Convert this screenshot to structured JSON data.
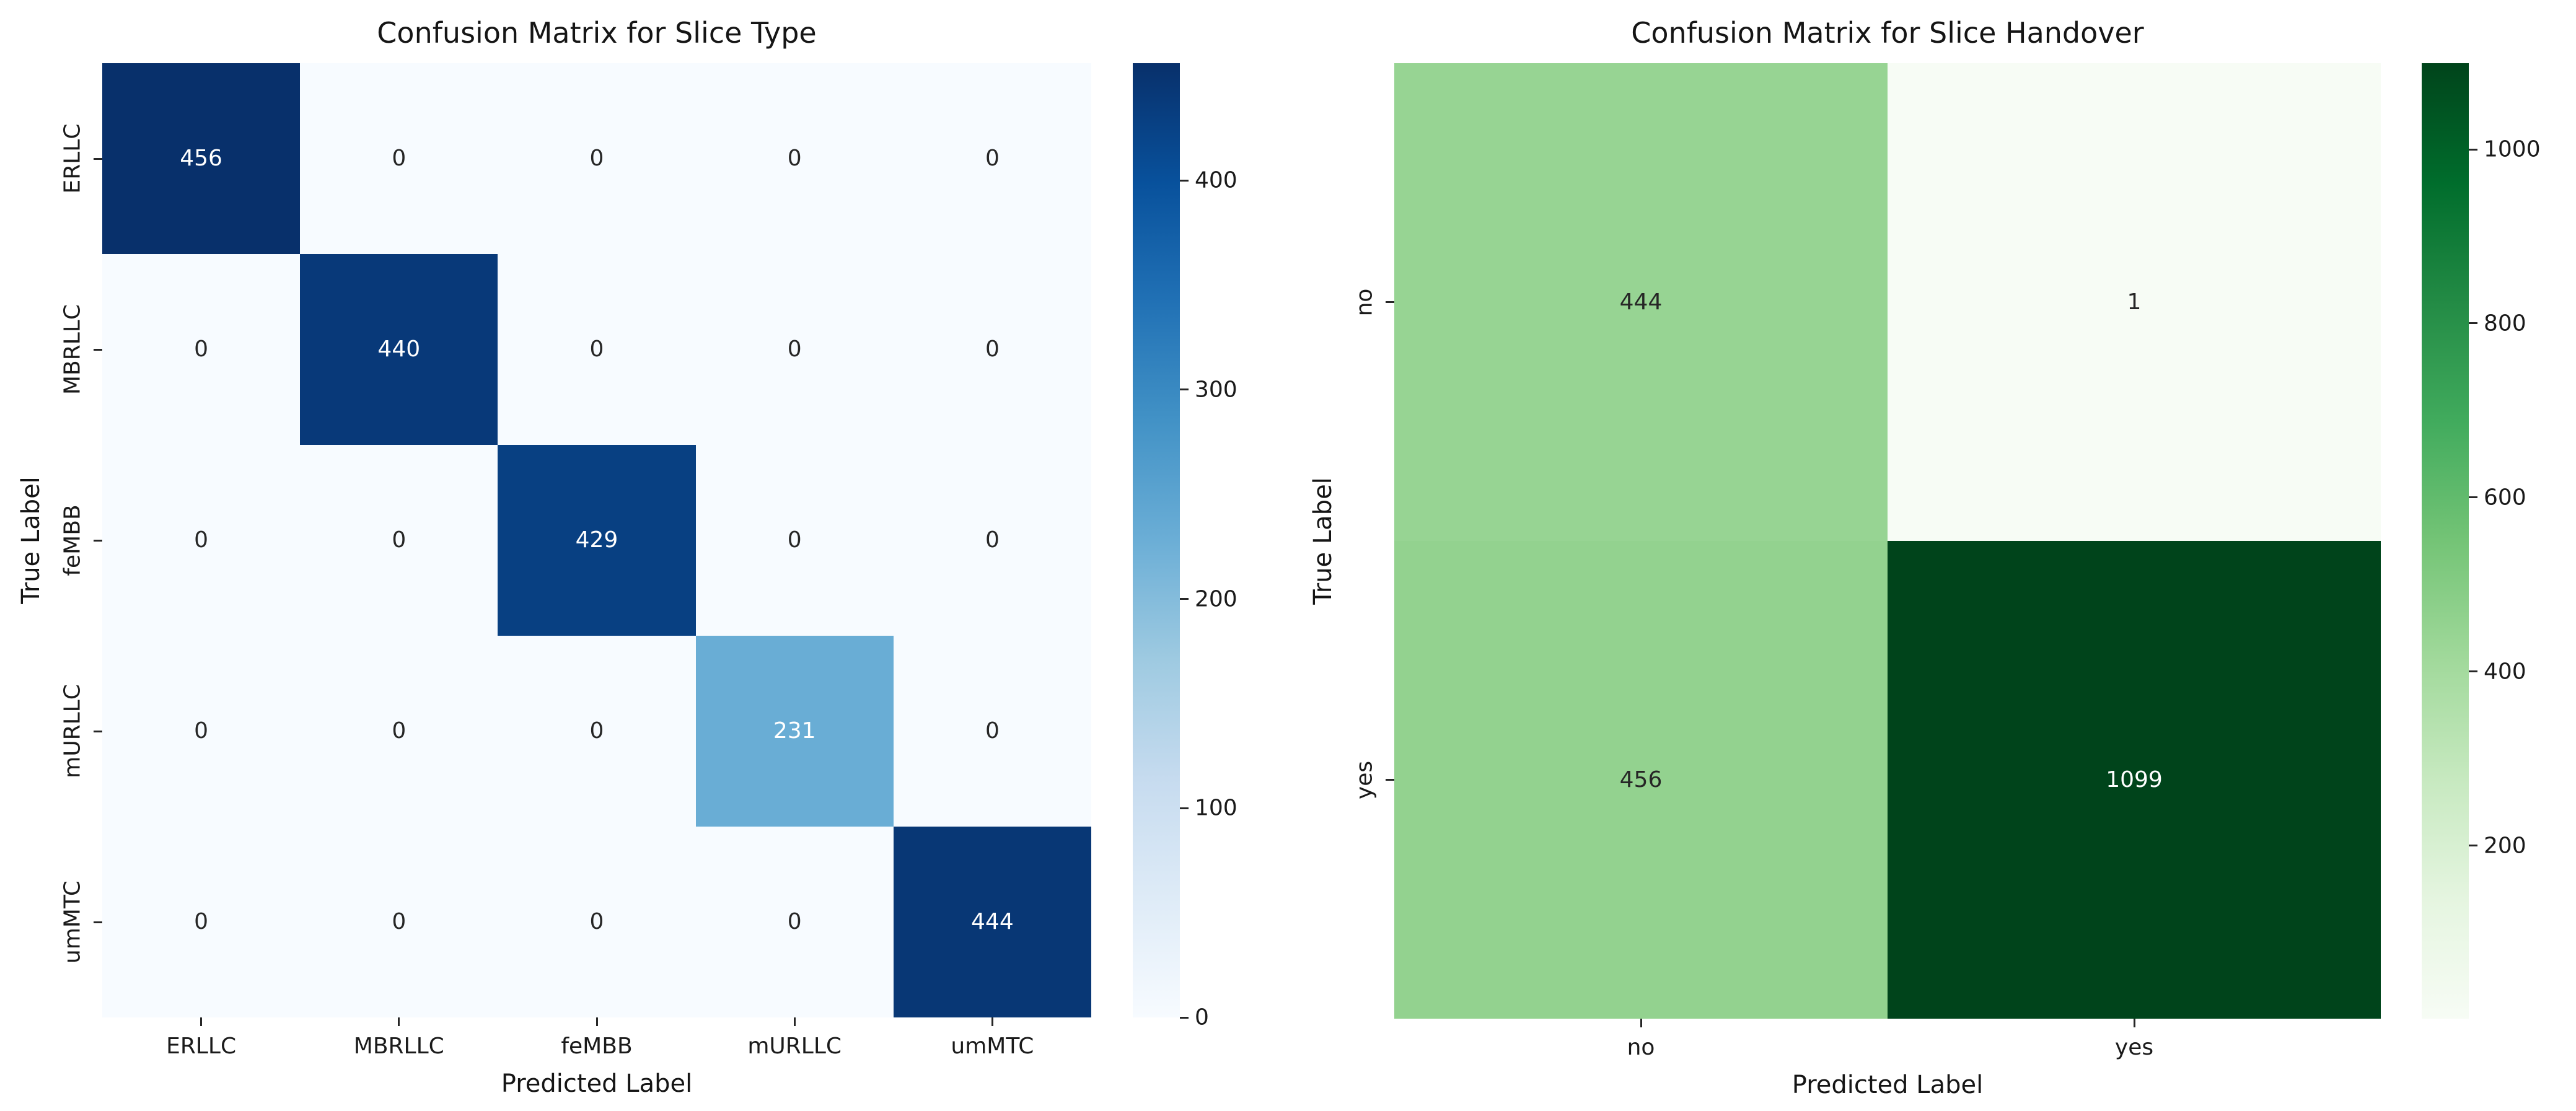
{
  "figure": {
    "background": "#ffffff",
    "description": "Two confusion matrix heatmaps side by side"
  },
  "chart_data": [
    {
      "type": "heatmap",
      "title": "Confusion Matrix for Slice Type",
      "xlabel": "Predicted Label",
      "ylabel": "True Label",
      "x_categories": [
        "ERLLC",
        "MBRLLC",
        "feMBB",
        "mURLLC",
        "umMTC"
      ],
      "y_categories": [
        "ERLLC",
        "MBRLLC",
        "feMBB",
        "mURLLC",
        "umMTC"
      ],
      "values": [
        [
          456,
          0,
          0,
          0,
          0
        ],
        [
          0,
          440,
          0,
          0,
          0
        ],
        [
          0,
          0,
          429,
          0,
          0
        ],
        [
          0,
          0,
          0,
          231,
          0
        ],
        [
          0,
          0,
          0,
          0,
          444
        ]
      ],
      "vmin": 0,
      "vmax": 456,
      "colormap": "blues",
      "colorbar_ticks": [
        0,
        100,
        200,
        300,
        400
      ],
      "legend_position": "right",
      "grid": false
    },
    {
      "type": "heatmap",
      "title": "Confusion Matrix for Slice Handover",
      "xlabel": "Predicted Label",
      "ylabel": "True Label",
      "x_categories": [
        "no",
        "yes"
      ],
      "y_categories": [
        "no",
        "yes"
      ],
      "values": [
        [
          444,
          1
        ],
        [
          456,
          1099
        ]
      ],
      "vmin": 1,
      "vmax": 1099,
      "colormap": "greens",
      "colorbar_ticks": [
        200,
        400,
        600,
        800,
        1000
      ],
      "legend_position": "right",
      "grid": false
    }
  ],
  "colors": {
    "blues_stops": [
      "#f7fbff",
      "#deebf7",
      "#c6dbef",
      "#9ecae1",
      "#6baed6",
      "#4292c6",
      "#2171b5",
      "#08519c",
      "#08306b"
    ],
    "greens_stops": [
      "#f7fcf5",
      "#e5f5e0",
      "#c7e9c0",
      "#a1d99b",
      "#74c476",
      "#41ab5d",
      "#238b45",
      "#006d2c",
      "#00441b"
    ],
    "annotation_dark": "#262626",
    "annotation_light": "#ffffff",
    "tick_color": "#262626",
    "title_color": "#151515",
    "background": "#ffffff"
  }
}
